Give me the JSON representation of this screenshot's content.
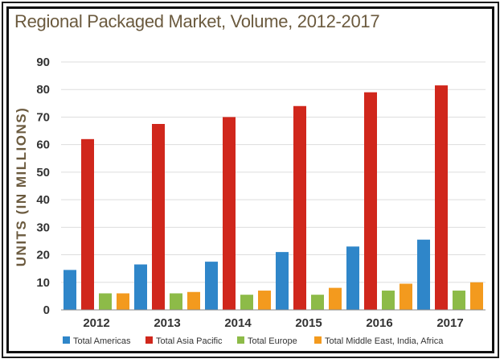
{
  "chart_data": {
    "type": "bar",
    "title": "Regional Packaged Market, Volume, 2012-2017",
    "ylabel": "UNITS (IN MILLIONS)",
    "xlabel": "",
    "categories": [
      "2012",
      "2013",
      "2014",
      "2015",
      "2016",
      "2017"
    ],
    "ylim": [
      0,
      90
    ],
    "yticks": [
      0,
      10,
      20,
      30,
      40,
      50,
      60,
      70,
      80,
      90
    ],
    "grid": true,
    "legend_position": "bottom",
    "series": [
      {
        "name": "Total Americas",
        "color": "#2f86c9",
        "values": [
          14.5,
          16.5,
          17.5,
          21,
          23,
          25.5
        ]
      },
      {
        "name": "Total Asia Pacific",
        "color": "#d0271c",
        "values": [
          62,
          67.5,
          70,
          74,
          79,
          81.5
        ]
      },
      {
        "name": "Total Europe",
        "color": "#8dbb48",
        "values": [
          6,
          6,
          5.5,
          5.5,
          7,
          7
        ]
      },
      {
        "name": "Total Middle East, India, Africa",
        "color": "#f39a1e",
        "values": [
          6,
          6.5,
          7,
          8,
          9.5,
          10
        ]
      }
    ]
  }
}
